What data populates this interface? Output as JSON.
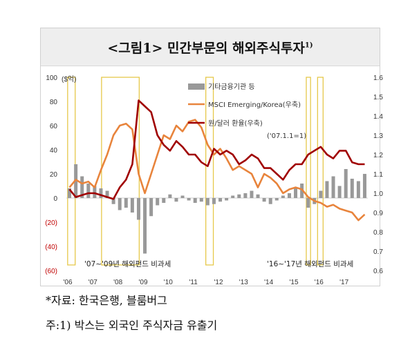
{
  "title": {
    "main": "<그림1> 민간부문의 해외주식투자",
    "sup": "1)"
  },
  "footnotes": {
    "source": "*자료: 한국은행, 블룸버그",
    "note": "주:1) 박스는 외국인 주식자금 유출기"
  },
  "colors": {
    "bars": "#999999",
    "msci": "#e8843c",
    "fx": "#a00000",
    "box": "#e6c84a",
    "neg_tick": "#c00000"
  },
  "chart_data": {
    "type": "bar+line",
    "y_left": {
      "unit_label": "($억)",
      "ticks": [
        "100",
        "80",
        "60",
        "40",
        "20",
        "0",
        "(20)",
        "(40)",
        "(60)"
      ],
      "min": -60,
      "max": 100
    },
    "y_right": {
      "ticks": [
        "1.6",
        "1.5",
        "1.4",
        "1.3",
        "1.2",
        "1.1",
        "1.0",
        "0.9",
        "0.8",
        "0.7",
        "0.6"
      ],
      "min": 0.6,
      "max": 1.6
    },
    "x_ticks": [
      "'06",
      "'07",
      "'08",
      "'09",
      "'10",
      "'11",
      "'12",
      "'13",
      "'14",
      "'15",
      "'16",
      "'17"
    ],
    "x_range": [
      2006.0,
      2018.0
    ],
    "legend": {
      "bars": "기타금융기관 등",
      "msci": "MSCI Emerging/Korea(우축)",
      "fx": "원/달러 환율(우축)",
      "base_note": "('07.1.1=1)"
    },
    "annotations": {
      "left": "'07~'09년 해외펀드 비과세",
      "right": "'16~'17년 해외펀드 비과세"
    },
    "outflow_boxes": [
      [
        2006.05,
        2006.35
      ],
      [
        2007.4,
        2008.9
      ],
      [
        2011.55,
        2011.85
      ],
      [
        2015.55,
        2015.72
      ],
      [
        2016.0,
        2016.22
      ]
    ],
    "series_bars": {
      "name": "기타금융기관 등",
      "x": [
        2006.0,
        2006.25,
        2006.5,
        2006.75,
        2007.0,
        2007.25,
        2007.5,
        2007.75,
        2008.0,
        2008.25,
        2008.5,
        2008.75,
        2009.0,
        2009.25,
        2009.5,
        2009.75,
        2010.0,
        2010.25,
        2010.5,
        2010.75,
        2011.0,
        2011.25,
        2011.5,
        2011.75,
        2012.0,
        2012.25,
        2012.5,
        2012.75,
        2013.0,
        2013.25,
        2013.5,
        2013.75,
        2014.0,
        2014.25,
        2014.5,
        2014.75,
        2015.0,
        2015.25,
        2015.5,
        2015.75,
        2016.0,
        2016.25,
        2016.5,
        2016.75,
        2017.0,
        2017.25,
        2017.5,
        2017.75
      ],
      "values": [
        8,
        28,
        18,
        12,
        10,
        8,
        6,
        -5,
        -10,
        -8,
        -12,
        -18,
        -46,
        -15,
        -6,
        -4,
        3,
        -3,
        2,
        -2,
        -4,
        -3,
        -6,
        -5,
        -3,
        -2,
        2,
        3,
        4,
        6,
        3,
        -3,
        -5,
        -2,
        2,
        4,
        8,
        12,
        -8,
        -5,
        6,
        14,
        18,
        10,
        24,
        16,
        14,
        20
      ]
    },
    "series_msci": {
      "name": "MSCI Emerging/Korea(우축)",
      "x": [
        2006.0,
        2006.25,
        2006.5,
        2006.75,
        2007.0,
        2007.25,
        2007.5,
        2007.75,
        2008.0,
        2008.25,
        2008.5,
        2008.75,
        2009.0,
        2009.25,
        2009.5,
        2009.75,
        2010.0,
        2010.25,
        2010.5,
        2010.75,
        2011.0,
        2011.25,
        2011.5,
        2011.75,
        2012.0,
        2012.25,
        2012.5,
        2012.75,
        2013.0,
        2013.25,
        2013.5,
        2013.75,
        2014.0,
        2014.25,
        2014.5,
        2014.75,
        2015.0,
        2015.25,
        2015.5,
        2015.75,
        2016.0,
        2016.25,
        2016.5,
        2016.75,
        2017.0,
        2017.25,
        2017.5,
        2017.75
      ],
      "values": [
        1.03,
        1.07,
        1.05,
        1.06,
        1.03,
        1.12,
        1.2,
        1.3,
        1.35,
        1.36,
        1.33,
        1.1,
        1.0,
        1.1,
        1.2,
        1.3,
        1.28,
        1.35,
        1.32,
        1.37,
        1.38,
        1.34,
        1.25,
        1.2,
        1.23,
        1.18,
        1.12,
        1.14,
        1.12,
        1.1,
        1.03,
        1.1,
        1.08,
        1.05,
        1.0,
        1.02,
        1.03,
        1.02,
        0.98,
        0.96,
        0.95,
        0.93,
        0.94,
        0.92,
        0.91,
        0.9,
        0.86,
        0.89
      ]
    },
    "series_fx": {
      "name": "원/달러 환율(우축)",
      "x": [
        2006.0,
        2006.25,
        2006.5,
        2006.75,
        2007.0,
        2007.25,
        2007.5,
        2007.75,
        2008.0,
        2008.25,
        2008.5,
        2008.75,
        2009.0,
        2009.25,
        2009.5,
        2009.75,
        2010.0,
        2010.25,
        2010.5,
        2010.75,
        2011.0,
        2011.25,
        2011.5,
        2011.75,
        2012.0,
        2012.25,
        2012.5,
        2012.75,
        2013.0,
        2013.25,
        2013.5,
        2013.75,
        2014.0,
        2014.25,
        2014.5,
        2014.75,
        2015.0,
        2015.25,
        2015.5,
        2015.75,
        2016.0,
        2016.25,
        2016.5,
        2016.75,
        2017.0,
        2017.25,
        2017.5,
        2017.75
      ],
      "values": [
        1.02,
        0.98,
        0.99,
        1.0,
        1.0,
        0.99,
        0.98,
        0.97,
        1.03,
        1.07,
        1.15,
        1.48,
        1.45,
        1.42,
        1.3,
        1.25,
        1.22,
        1.27,
        1.24,
        1.2,
        1.2,
        1.16,
        1.14,
        1.23,
        1.2,
        1.22,
        1.2,
        1.15,
        1.17,
        1.2,
        1.18,
        1.13,
        1.13,
        1.1,
        1.07,
        1.12,
        1.15,
        1.15,
        1.2,
        1.22,
        1.24,
        1.2,
        1.18,
        1.22,
        1.22,
        1.16,
        1.15,
        1.15
      ]
    }
  }
}
